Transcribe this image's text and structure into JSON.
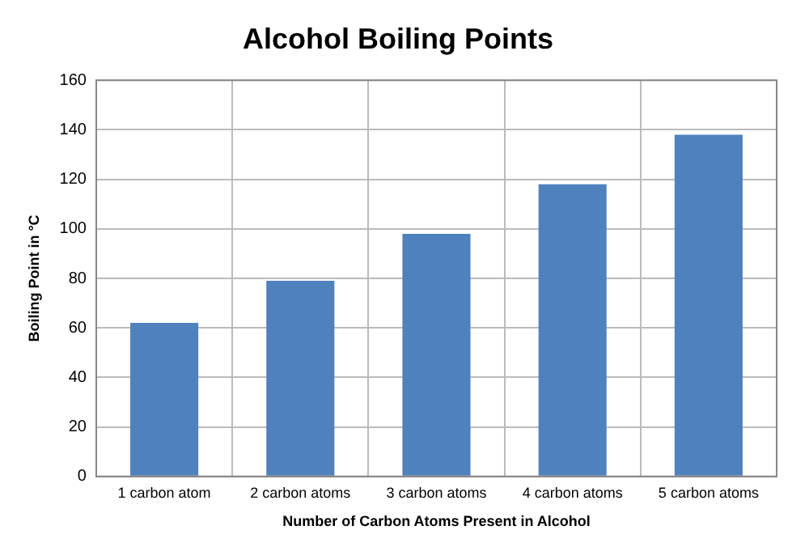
{
  "chart_data": {
    "type": "bar",
    "title": "Alcohol Boiling Points",
    "xlabel": "Number of Carbon Atoms Present in Alcohol",
    "ylabel": "Boiling Point in °C",
    "categories": [
      "1 carbon atom",
      "2 carbon atoms",
      "3 carbon atoms",
      "4 carbon atoms",
      "5 carbon atoms"
    ],
    "values": [
      62,
      79,
      98,
      118,
      138
    ],
    "color": "#4f81bd",
    "ylim": [
      0,
      160
    ],
    "yticks": [
      0,
      20,
      40,
      60,
      80,
      100,
      120,
      140,
      160
    ],
    "grid": true,
    "legend": false
  }
}
